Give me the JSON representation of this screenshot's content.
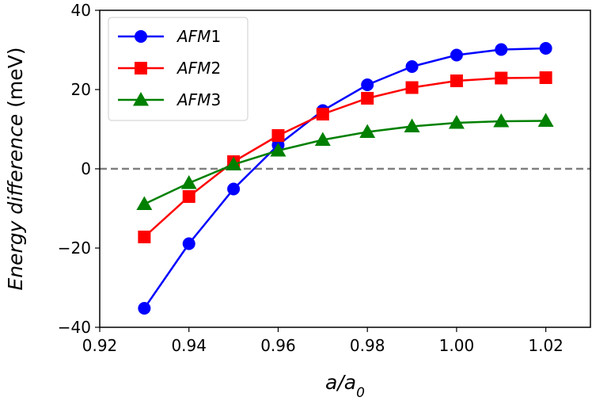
{
  "chart_data": {
    "type": "line",
    "title": "",
    "xlabel": "a/a0",
    "ylabel": "Energy difference (meV)",
    "xlim": [
      0.92,
      1.03
    ],
    "ylim": [
      -40,
      40
    ],
    "xticks": [
      "0.92",
      "0.94",
      "0.96",
      "0.98",
      "1.00",
      "1.02"
    ],
    "yticks": [
      "−40",
      "−20",
      "0",
      "20",
      "40"
    ],
    "xtick_values": [
      0.92,
      0.94,
      0.96,
      0.98,
      1.0,
      1.02
    ],
    "ytick_values": [
      -40,
      -20,
      0,
      20,
      40
    ],
    "reference_line": {
      "y": 0,
      "style": "dashed",
      "color": "#808080"
    },
    "legend_position": "top-left",
    "x": [
      0.93,
      0.94,
      0.95,
      0.96,
      0.97,
      0.98,
      0.99,
      1.0,
      1.01,
      1.02
    ],
    "series": [
      {
        "name": "AFM1",
        "label_main": "AFM",
        "label_sub": "1",
        "color": "#0000ff",
        "marker": "circle",
        "values": [
          -35.2,
          -18.9,
          -5.1,
          6.0,
          14.7,
          21.2,
          25.8,
          28.7,
          30.1,
          30.4
        ]
      },
      {
        "name": "AFM2",
        "label_main": "AFM",
        "label_sub": "2",
        "color": "#ff0000",
        "marker": "square",
        "values": [
          -17.2,
          -7.0,
          1.8,
          8.4,
          13.8,
          17.8,
          20.5,
          22.2,
          22.9,
          23.0
        ]
      },
      {
        "name": "AFM3",
        "label_main": "AFM",
        "label_sub": "3",
        "color": "#008000",
        "marker": "triangle",
        "values": [
          -8.9,
          -3.6,
          1.1,
          4.6,
          7.3,
          9.3,
          10.7,
          11.6,
          12.0,
          12.1
        ]
      }
    ]
  }
}
